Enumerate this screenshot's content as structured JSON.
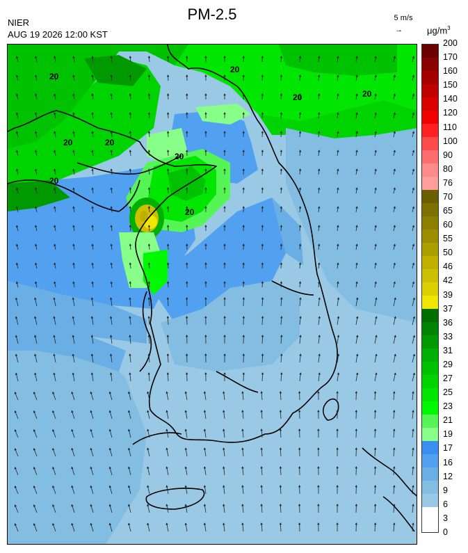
{
  "header": {
    "title": "PM-2.5",
    "agency": "NIER",
    "datetime": "AUG 19 2026 12:00 KST",
    "wind_scale_label": "5 m/s",
    "wind_scale_arrow": "→",
    "unit_base": "μg/m",
    "unit_exp": "3"
  },
  "contour_label": "20",
  "colorbar": {
    "labels": [
      "200",
      "170",
      "160",
      "150",
      "140",
      "120",
      "110",
      "100",
      "90",
      "80",
      "76",
      "70",
      "65",
      "60",
      "55",
      "50",
      "46",
      "42",
      "39",
      "37",
      "36",
      "33",
      "31",
      "29",
      "27",
      "25",
      "23",
      "21",
      "19",
      "17",
      "16",
      "12",
      "9",
      "6",
      "3",
      "0"
    ],
    "colors": [
      "#6b0000",
      "#8b0000",
      "#a50000",
      "#c00000",
      "#d80000",
      "#f00000",
      "#ff2020",
      "#ff4a4a",
      "#ff6e6e",
      "#ff8a8a",
      "#ff9c9c",
      "#6b6000",
      "#7d7000",
      "#8c7f00",
      "#9c8e00",
      "#ad9f00",
      "#bfb000",
      "#cdc000",
      "#dcd000",
      "#f0e600",
      "#006f00",
      "#008300",
      "#009a00",
      "#00b000",
      "#00c200",
      "#00d400",
      "#00e600",
      "#00f800",
      "#55f555",
      "#88ff88",
      "#3b8ff0",
      "#52a0f0",
      "#6aaee6",
      "#84bde2",
      "#99c9e4"
    ]
  },
  "map": {
    "legend_colors": {
      "sea_low": "#99c9e4",
      "low": "#84bde2",
      "mid_low": "#6aaee6",
      "mid": "#52a0f0",
      "blue": "#3b8ff0",
      "light_green": "#88ff88",
      "green": "#00f000",
      "dark_green": "#00c200",
      "deep_green": "#009a00",
      "yellow": "#f0e600",
      "olive": "#cdc000"
    }
  }
}
